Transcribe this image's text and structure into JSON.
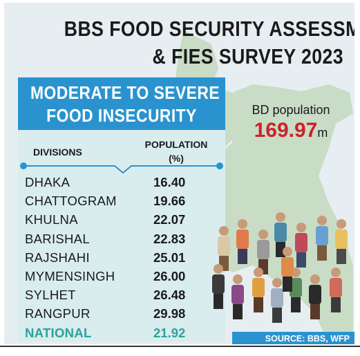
{
  "title": {
    "line1": "BBS FOOD SECURITY ASSESSMENT",
    "line2": "& FIES SURVEY 2023"
  },
  "panel": {
    "heading_line1": "MODERATE TO SEVERE",
    "heading_line2": "FOOD INSECURITY",
    "col_divisions": "DIVISIONS",
    "col_population_line1": "POPULATION",
    "col_population_line2": "(%)"
  },
  "rows": [
    {
      "division": "DHAKA",
      "value": "16.40"
    },
    {
      "division": "CHATTOGRAM",
      "value": "19.66"
    },
    {
      "division": "KHULNA",
      "value": "22.07"
    },
    {
      "division": "BARISHAL",
      "value": "22.83"
    },
    {
      "division": "RAJSHAHI",
      "value": "25.01"
    },
    {
      "division": "MYMENSINGH",
      "value": "26.00"
    },
    {
      "division": "SYLHET",
      "value": "26.48"
    },
    {
      "division": "RANGPUR",
      "value": "29.98"
    }
  ],
  "national": {
    "division": "NATIONAL",
    "value": "21.92"
  },
  "bd_population": {
    "label": "BD population",
    "value": "169.97",
    "unit": "m"
  },
  "source": "SOURCE: BBS, WFP",
  "colors": {
    "accent_blue": "#2a93cf",
    "highlight_red": "#cc2229",
    "national_teal": "#2aa39a",
    "map_green": "#c9dcc6",
    "panel_bg": "#d9ecee"
  }
}
